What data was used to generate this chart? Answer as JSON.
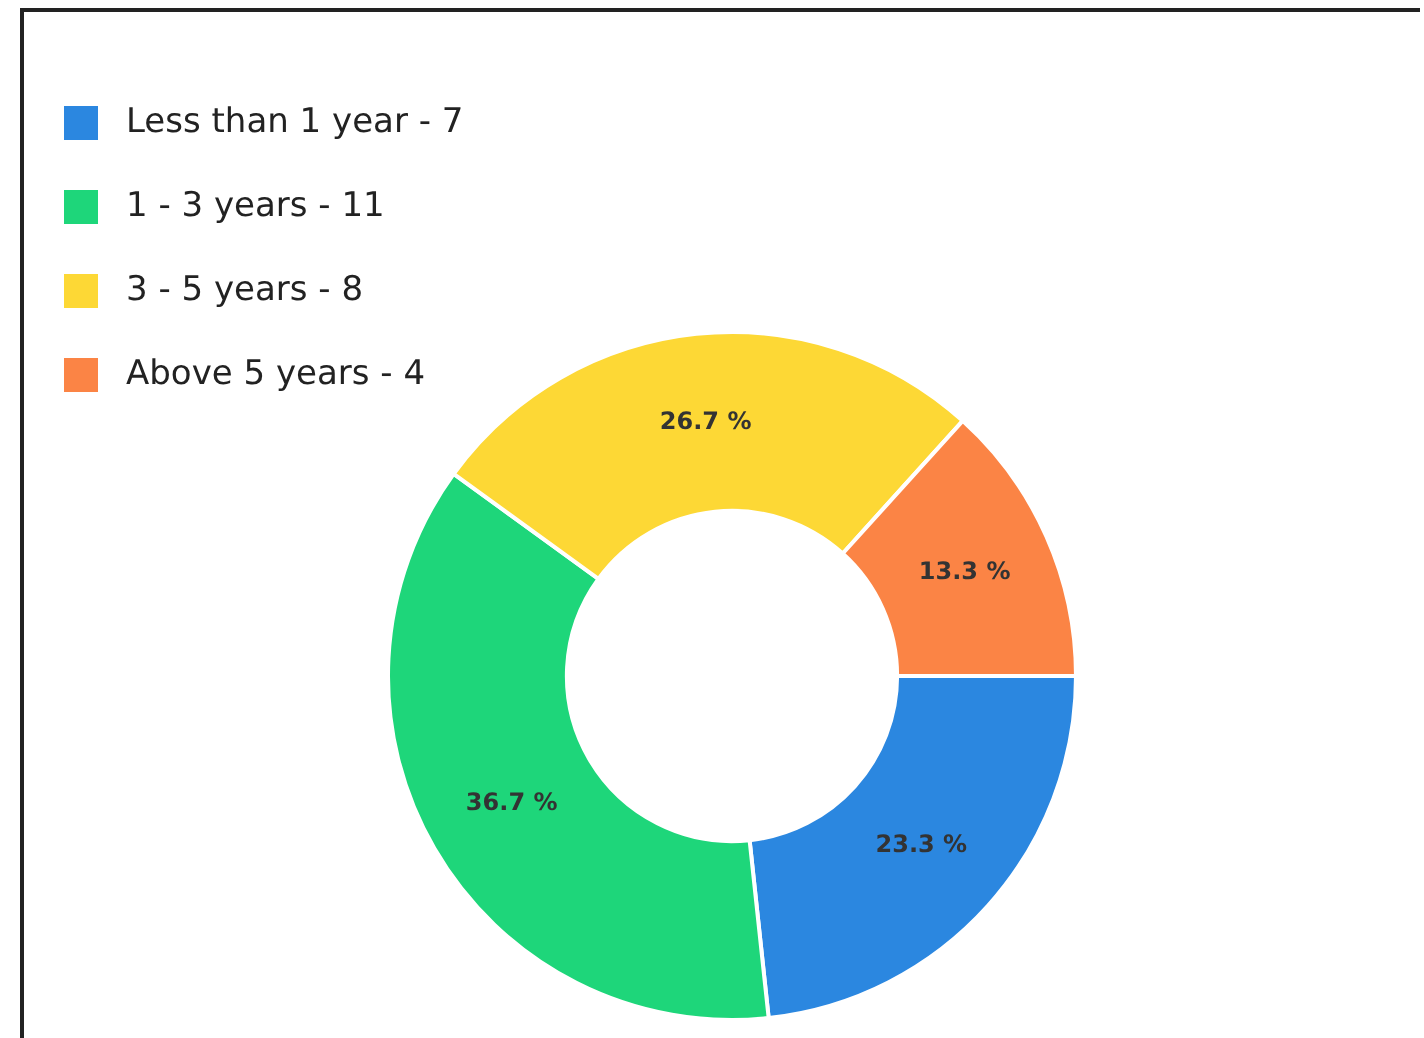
{
  "chart_data": {
    "type": "donut",
    "categories": [
      "Less than 1 year - 7",
      "1 - 3 years - 11",
      "3 - 5 years - 8",
      "Above 5 years - 4"
    ],
    "values": [
      23.3,
      36.7,
      26.7,
      13.3
    ],
    "colors": [
      "#2b87e0",
      "#1ed67a",
      "#fdd835",
      "#fb8445"
    ],
    "value_labels": [
      "23.3 %",
      "36.7 %",
      "26.7 %",
      "13.3 %"
    ],
    "legend": "top left"
  }
}
